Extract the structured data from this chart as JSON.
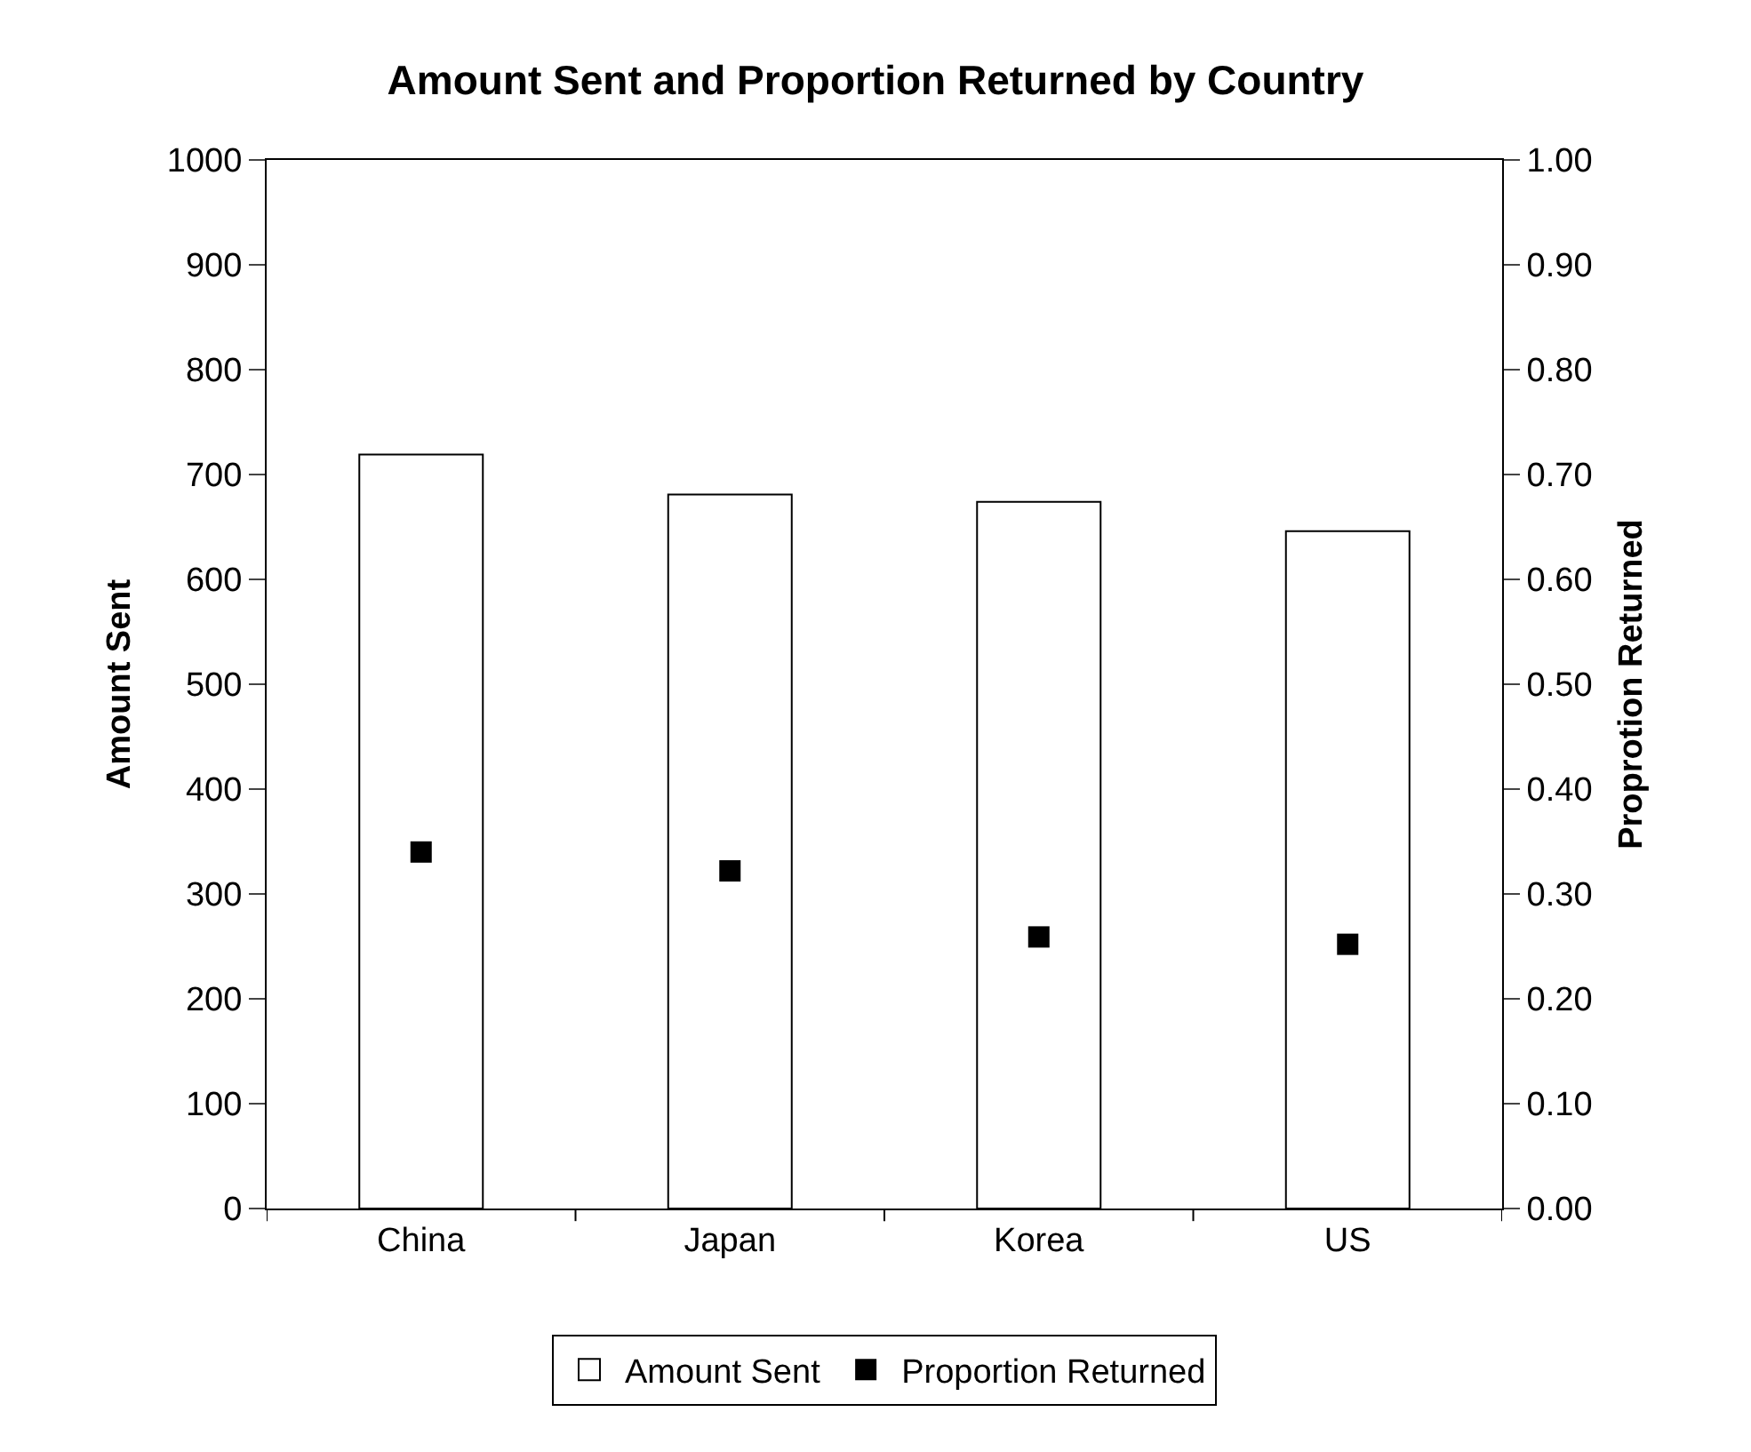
{
  "chart_data": {
    "type": "bar",
    "title": "Amount Sent and Proportion Returned by Country",
    "ylabel": "Amount Sent",
    "y2label": "Proprotion Returned",
    "categories": [
      "China",
      "Japan",
      "Korea",
      "US"
    ],
    "series": [
      {
        "name": "Amount Sent",
        "color": "#ffffff",
        "values": [
          719,
          681,
          674,
          646
        ]
      },
      {
        "name": "Proportion Returned",
        "type": "scatter",
        "axis": "y2",
        "color": "#000000",
        "values": [
          0.34,
          0.322,
          0.259,
          0.252
        ]
      }
    ],
    "ylim": [
      0,
      1000
    ],
    "yticks": [
      0,
      100,
      200,
      300,
      400,
      500,
      600,
      700,
      800,
      900,
      1000
    ],
    "y2lim": [
      0,
      1
    ],
    "y2ticks": [
      {
        "value": 0,
        "label": "0.00"
      },
      {
        "value": 0.1,
        "label": "0.10"
      },
      {
        "value": 0.2,
        "label": "0.20"
      },
      {
        "value": 0.3,
        "label": "0.30"
      },
      {
        "value": 0.4,
        "label": "0.40"
      },
      {
        "value": 0.5,
        "label": "0.50"
      },
      {
        "value": 0.6,
        "label": "0.60"
      },
      {
        "value": 0.7,
        "label": "0.70"
      },
      {
        "value": 0.8,
        "label": "0.80"
      },
      {
        "value": 0.9,
        "label": "0.90"
      },
      {
        "value": 1,
        "label": "1.00"
      }
    ],
    "legend": "bottom",
    "marker": "square"
  }
}
